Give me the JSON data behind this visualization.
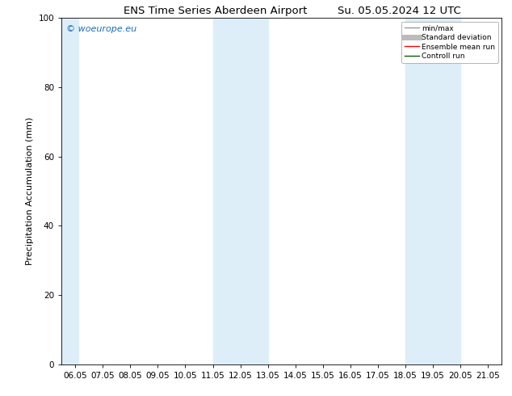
{
  "title_left": "ENS Time Series Aberdeen Airport",
  "title_right": "Su. 05.05.2024 12 UTC",
  "ylabel": "Precipitation Accumulation (mm)",
  "ylim": [
    0,
    100
  ],
  "yticks": [
    0,
    20,
    40,
    60,
    80,
    100
  ],
  "x_labels": [
    "06.05",
    "07.05",
    "08.05",
    "09.05",
    "10.05",
    "11.05",
    "12.05",
    "13.05",
    "14.05",
    "15.05",
    "16.05",
    "17.05",
    "18.05",
    "19.05",
    "20.05",
    "21.05"
  ],
  "x_values": [
    0,
    1,
    2,
    3,
    4,
    5,
    6,
    7,
    8,
    9,
    10,
    11,
    12,
    13,
    14,
    15
  ],
  "shaded_bands": [
    {
      "xmin": -0.5,
      "xmax": 0.1
    },
    {
      "xmin": 5.0,
      "xmax": 7.0
    },
    {
      "xmin": 12.0,
      "xmax": 14.0
    }
  ],
  "band_color": "#ddeef8",
  "watermark_text": "© woeurope.eu",
  "watermark_color": "#1a6bbf",
  "legend_items": [
    {
      "label": "min/max",
      "color": "#999999",
      "lw": 1,
      "style": "solid"
    },
    {
      "label": "Standard deviation",
      "color": "#bbbbbb",
      "lw": 5,
      "style": "solid"
    },
    {
      "label": "Ensemble mean run",
      "color": "red",
      "lw": 1,
      "style": "solid"
    },
    {
      "label": "Controll run",
      "color": "darkgreen",
      "lw": 1,
      "style": "solid"
    }
  ],
  "background_color": "#ffffff",
  "title_fontsize": 9.5,
  "ylabel_fontsize": 8,
  "tick_fontsize": 7.5
}
